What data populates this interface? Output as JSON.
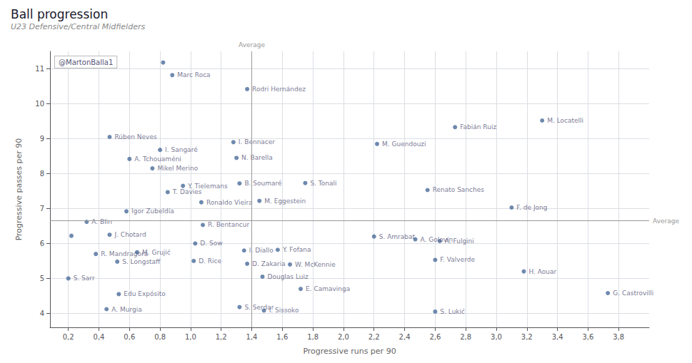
{
  "chart_data": {
    "type": "scatter",
    "title": "Ball progression",
    "subtitle": "U23 Defensive/Central Midfielders",
    "xlabel": "Progressive runs per 90",
    "ylabel": "Progressive passes per 90",
    "xlim": [
      0.08,
      4.0
    ],
    "ylim": [
      3.6,
      11.5
    ],
    "xticks": [
      {
        "value": 0.2,
        "label": "0,2"
      },
      {
        "value": 0.4,
        "label": "0,4"
      },
      {
        "value": 0.6,
        "label": "0,6"
      },
      {
        "value": 0.8,
        "label": "0,8"
      },
      {
        "value": 1.0,
        "label": "1,0"
      },
      {
        "value": 1.2,
        "label": "1,2"
      },
      {
        "value": 1.4,
        "label": "1,4"
      },
      {
        "value": 1.6,
        "label": "1,6"
      },
      {
        "value": 1.8,
        "label": "1,8"
      },
      {
        "value": 2.0,
        "label": "2,0"
      },
      {
        "value": 2.2,
        "label": "2,2"
      },
      {
        "value": 2.4,
        "label": "2,4"
      },
      {
        "value": 2.6,
        "label": "2,6"
      },
      {
        "value": 2.8,
        "label": "2,8"
      },
      {
        "value": 3.0,
        "label": "3,0"
      },
      {
        "value": 3.2,
        "label": "3,2"
      },
      {
        "value": 3.4,
        "label": "3,4"
      },
      {
        "value": 3.6,
        "label": "3,6"
      },
      {
        "value": 3.8,
        "label": "3,8"
      }
    ],
    "yticks": [
      4,
      5,
      6,
      7,
      8,
      9,
      10,
      11
    ],
    "grid": true,
    "color": "#4a6b9a",
    "x": [
      3.3,
      2.73,
      2.22,
      2.55,
      3.1,
      1.75,
      2.63,
      2.47,
      2.2,
      2.6,
      3.18,
      3.73,
      2.6,
      1.72,
      1.65,
      1.57,
      1.47,
      1.48,
      1.32,
      1.37,
      1.35,
      1.28,
      1.3,
      1.32,
      1.45,
      1.07,
      1.08,
      1.03,
      1.02,
      0.95,
      0.85,
      0.75,
      0.8,
      0.6,
      0.47,
      0.58,
      0.65,
      0.52,
      0.38,
      0.47,
      0.32,
      0.53,
      0.45,
      0.2,
      1.37,
      0.88,
      0.82,
      0.22
    ],
    "values": [
      9.52,
      9.33,
      8.85,
      7.53,
      7.03,
      7.73,
      6.07,
      6.12,
      6.2,
      5.53,
      5.2,
      4.58,
      4.05,
      4.7,
      5.4,
      5.82,
      5.05,
      4.08,
      4.18,
      5.42,
      5.8,
      8.9,
      8.45,
      7.72,
      7.22,
      7.18,
      6.53,
      6.0,
      5.5,
      7.65,
      7.47,
      8.15,
      8.68,
      8.42,
      9.05,
      6.92,
      5.75,
      5.48,
      5.7,
      6.25,
      6.62,
      4.55,
      4.12,
      5.0,
      10.42,
      10.82,
      11.18,
      6.22
    ],
    "point_labels": [
      "M. Locatelli",
      "Fabián Ruiz",
      "M. Guendouzi",
      "Renato Sanches",
      "F. de Jong",
      "S. Tonali",
      "A. Fulgini",
      "A. Golovin",
      "S. Amrabat",
      "F. Valverde",
      "H. Aouar",
      "G. Castrovilli",
      "S. Lukić",
      "E. Camavinga",
      "W. McKennie",
      "Y. Fofana",
      "Douglas Luiz",
      "I. Sissoko",
      "S. Serdar",
      "D. Zakaria",
      "I. Diallo",
      "I. Bennacer",
      "N. Barella",
      "B. Soumaré",
      "M. Eggestein",
      "Ronaldo Vieira",
      "R. Bentancur",
      "D. Sow",
      "D. Rice",
      "Y. Tielemans",
      "T. Davies",
      "Mikel Merino",
      "I. Sangaré",
      "A. Tchouaméni",
      "Rúben Neves",
      "Igor Zubeldía",
      "M. Grujić",
      "S. Longstaff",
      "R. Mandragora",
      "J. Chotard",
      "A. Blin",
      "Edu Expósito",
      "A. Murgia",
      "S. Sarr",
      "Rodri Hernández",
      "Marc Roca",
      null,
      null
    ],
    "reference_lines": [
      {
        "axis": "x",
        "value": 1.4,
        "label": "Average"
      },
      {
        "axis": "y",
        "value": 6.65,
        "label": "Average"
      }
    ],
    "annotations": [
      {
        "text": "@MartonBalla1"
      }
    ]
  }
}
